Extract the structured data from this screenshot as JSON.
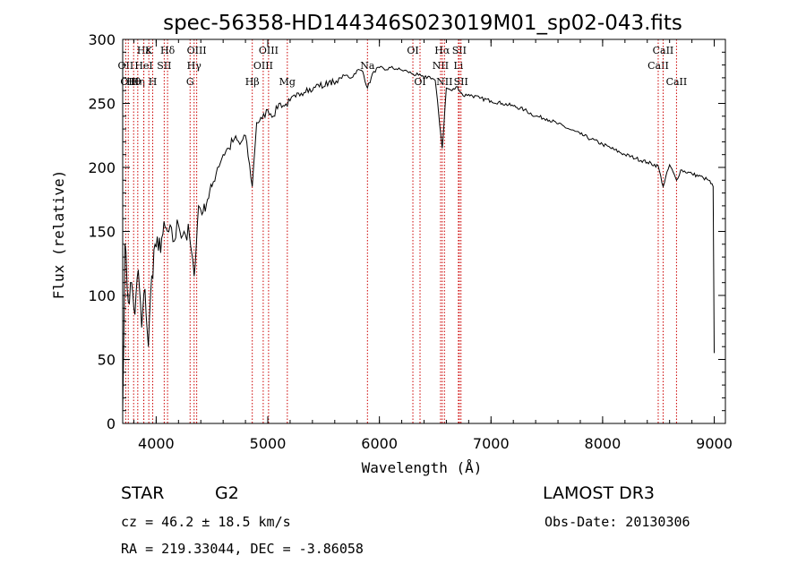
{
  "chart_data": {
    "type": "line",
    "title": "spec-56358-HD144346S023019M01_sp02-043.fits",
    "xlabel": "Wavelength (Å)",
    "ylabel": "Flux (relative)",
    "xlim": [
      3700,
      9100
    ],
    "ylim": [
      0,
      300
    ],
    "xticks": [
      4000,
      5000,
      6000,
      7000,
      8000,
      9000
    ],
    "yticks": [
      0,
      50,
      100,
      150,
      200,
      250,
      300
    ],
    "series": [
      {
        "name": "flux",
        "x": [
          3700,
          3720,
          3750,
          3780,
          3810,
          3840,
          3870,
          3900,
          3930,
          3960,
          3990,
          4020,
          4060,
          4100,
          4150,
          4200,
          4250,
          4300,
          4340,
          4380,
          4420,
          4460,
          4500,
          4550,
          4600,
          4650,
          4700,
          4750,
          4800,
          4861,
          4900,
          4950,
          5000,
          5050,
          5100,
          5150,
          5200,
          5250,
          5300,
          5350,
          5400,
          5450,
          5500,
          5560,
          5600,
          5650,
          5700,
          5750,
          5800,
          5850,
          5893,
          5950,
          6000,
          6050,
          6100,
          6150,
          6200,
          6250,
          6300,
          6350,
          6400,
          6450,
          6500,
          6563,
          6600,
          6650,
          6700,
          6750,
          6800,
          6900,
          7000,
          7100,
          7200,
          7300,
          7400,
          7500,
          7600,
          7700,
          7800,
          7900,
          8000,
          8100,
          8200,
          8300,
          8400,
          8498,
          8542,
          8600,
          8662,
          8700,
          8800,
          8900,
          8950,
          8990,
          9000
        ],
        "y": [
          10,
          140,
          95,
          110,
          85,
          120,
          75,
          105,
          60,
          115,
          140,
          135,
          148,
          150,
          142,
          155,
          150,
          145,
          115,
          170,
          165,
          175,
          185,
          200,
          210,
          215,
          222,
          218,
          225,
          185,
          235,
          238,
          245,
          240,
          250,
          248,
          252,
          255,
          258,
          262,
          260,
          265,
          263,
          268,
          265,
          270,
          272,
          270,
          276,
          275,
          262,
          275,
          278,
          276,
          278,
          277,
          276,
          275,
          273,
          272,
          270,
          271,
          268,
          215,
          262,
          260,
          263,
          256,
          257,
          254,
          252,
          250,
          248,
          245,
          240,
          238,
          234,
          230,
          226,
          222,
          218,
          214,
          210,
          207,
          204,
          201,
          185,
          202,
          190,
          198,
          195,
          192,
          190,
          185,
          55
        ]
      }
    ],
    "lines": [
      {
        "wl": 3727,
        "labels": [
          {
            "text": "OII",
            "row": 1
          }
        ]
      },
      {
        "wl": 3750,
        "labels": [
          {
            "text": "OII",
            "row": 2
          }
        ]
      },
      {
        "wl": 3798,
        "labels": [
          {
            "text": "Hθ",
            "row": 2
          }
        ]
      },
      {
        "wl": 3835,
        "labels": [
          {
            "text": "Hη",
            "row": 2
          }
        ]
      },
      {
        "wl": 3889,
        "labels": [
          {
            "text": "Hε",
            "row": 0
          }
        ]
      },
      {
        "wl": 3889,
        "labels": [
          {
            "text": "HeI",
            "row": 1
          }
        ]
      },
      {
        "wl": 3934,
        "labels": [
          {
            "text": "K",
            "row": 0
          }
        ]
      },
      {
        "wl": 3969,
        "labels": [
          {
            "text": "H",
            "row": 2
          }
        ]
      },
      {
        "wl": 4072,
        "labels": [
          {
            "text": "SII",
            "row": 1
          }
        ]
      },
      {
        "wl": 4102,
        "labels": [
          {
            "text": "Hδ",
            "row": 0
          }
        ]
      },
      {
        "wl": 4304,
        "labels": [
          {
            "text": "G",
            "row": 2
          }
        ]
      },
      {
        "wl": 4340,
        "labels": [
          {
            "text": "Hγ",
            "row": 1
          }
        ]
      },
      {
        "wl": 4363,
        "labels": [
          {
            "text": "OIII",
            "row": 0
          }
        ]
      },
      {
        "wl": 4861,
        "labels": [
          {
            "text": "Hβ",
            "row": 2
          }
        ]
      },
      {
        "wl": 4959,
        "labels": [
          {
            "text": "OIII",
            "row": 1
          }
        ]
      },
      {
        "wl": 5007,
        "labels": [
          {
            "text": "OIII",
            "row": 0
          }
        ]
      },
      {
        "wl": 5175,
        "labels": [
          {
            "text": "Mg",
            "row": 2
          }
        ]
      },
      {
        "wl": 5893,
        "labels": [
          {
            "text": "Na",
            "row": 1
          }
        ]
      },
      {
        "wl": 6300,
        "labels": [
          {
            "text": "OI",
            "row": 0
          }
        ]
      },
      {
        "wl": 6364,
        "labels": [
          {
            "text": "OI",
            "row": 2
          }
        ]
      },
      {
        "wl": 6548,
        "labels": [
          {
            "text": "NII",
            "row": 1
          }
        ]
      },
      {
        "wl": 6563,
        "labels": [
          {
            "text": "Hα",
            "row": 0
          }
        ]
      },
      {
        "wl": 6583,
        "labels": [
          {
            "text": "NII",
            "row": 2
          }
        ]
      },
      {
        "wl": 6708,
        "labels": [
          {
            "text": "Li",
            "row": 1
          }
        ]
      },
      {
        "wl": 6716,
        "labels": [
          {
            "text": "SII",
            "row": 0
          }
        ]
      },
      {
        "wl": 6731,
        "labels": [
          {
            "text": "SII",
            "row": 2
          }
        ]
      },
      {
        "wl": 8498,
        "labels": [
          {
            "text": "CaII",
            "row": 1
          }
        ]
      },
      {
        "wl": 8542,
        "labels": [
          {
            "text": "CaII",
            "row": 0
          }
        ]
      },
      {
        "wl": 8662,
        "labels": [
          {
            "text": "CaII",
            "row": 2
          }
        ]
      }
    ],
    "line_color": "#cc0000",
    "spectrum_color": "#000000"
  },
  "info": {
    "object_type": "STAR",
    "spectral_class": "G2",
    "survey": "LAMOST DR3",
    "cz": "cz = 46.2 ± 18.5 km/s",
    "obs_date": "Obs-Date: 20130306",
    "coords": "RA = 219.33044, DEC =  -3.86058"
  }
}
